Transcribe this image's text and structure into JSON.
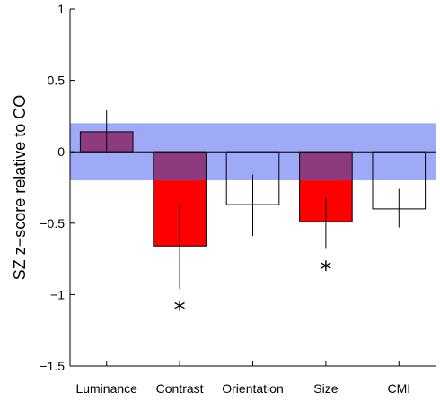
{
  "chart_data": {
    "type": "bar",
    "ylabel": "SZ z−score relative to CO",
    "ylim": [
      -1.5,
      1
    ],
    "yticks": [
      {
        "value": 1,
        "label": "1"
      },
      {
        "value": 0.5,
        "label": "0.5"
      },
      {
        "value": 0,
        "label": "0"
      },
      {
        "value": -0.5,
        "label": "−0.5"
      },
      {
        "value": -1,
        "label": "−1"
      },
      {
        "value": -1.5,
        "label": "−1.5"
      }
    ],
    "categories": [
      "Luminance",
      "Contrast",
      "Orientation",
      "Size",
      "CMI"
    ],
    "values": [
      0.14,
      -0.66,
      -0.37,
      -0.49,
      -0.4
    ],
    "error_low": [
      -0.01,
      -0.96,
      -0.59,
      -0.68,
      -0.53
    ],
    "error_high": [
      0.29,
      -0.35,
      -0.16,
      -0.32,
      -0.26
    ],
    "significant": [
      false,
      true,
      false,
      true,
      false
    ],
    "significance_marker": "*",
    "reference_band": {
      "low": -0.2,
      "high": 0.2
    },
    "colors": {
      "band": "#9eaaf7",
      "bar_in_band": "#8e3a7e",
      "bar_outside_band": "#ff0000",
      "bar_not_significant": "#ffffff",
      "axis": "#000000"
    },
    "grid": false
  }
}
